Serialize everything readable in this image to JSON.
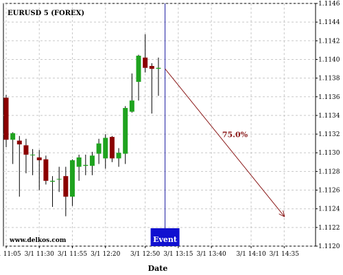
{
  "chart_data": {
    "type": "candlestick",
    "title": "EURUSD 5 (FOREX)",
    "xlabel": "Date",
    "ylabel": "",
    "watermark": "www.delkos.com",
    "ylim": [
      1.112,
      1.1146
    ],
    "y_ticks": [
      "1.1146",
      "1.1144",
      "1.1142",
      "1.1140",
      "1.1138",
      "1.1136",
      "1.1134",
      "1.1132",
      "1.1130",
      "1.1128",
      "1.1126",
      "1.1124",
      "1.1122",
      "1.1120"
    ],
    "x_tick_labels": [
      "3/1 11:05",
      "3/1 11:30",
      "3/1 11:55",
      "3/1 12:20",
      "3/1 12:50",
      "3/1 13:15",
      "3/1 13:40",
      "3/1 14:10",
      "3/1 14:35"
    ],
    "x_tick_index": [
      0,
      5,
      10,
      15,
      21,
      26,
      31,
      37,
      42
    ],
    "grid": true,
    "colors": {
      "up": "#1fa31f",
      "down": "#8b0000",
      "wick": "#000000",
      "event_line": "#1a1aa0",
      "event_box": "#1010d0",
      "arrow": "#8b1a1a",
      "grid": "#c8c8c8"
    },
    "candles": [
      {
        "o": 1.11359,
        "h": 1.11362,
        "l": 1.11306,
        "c": 1.11314
      },
      {
        "o": 1.11314,
        "h": 1.11322,
        "l": 1.11288,
        "c": 1.11321
      },
      {
        "o": 1.11313,
        "h": 1.11318,
        "l": 1.11253,
        "c": 1.11309
      },
      {
        "o": 1.11308,
        "h": 1.11315,
        "l": 1.11278,
        "c": 1.11298
      },
      {
        "o": 1.11298,
        "h": 1.11304,
        "l": 1.11276,
        "c": 1.11298
      },
      {
        "o": 1.11295,
        "h": 1.11303,
        "l": 1.1126,
        "c": 1.11292
      },
      {
        "o": 1.11293,
        "h": 1.11297,
        "l": 1.11266,
        "c": 1.1127
      },
      {
        "o": 1.11269,
        "h": 1.11275,
        "l": 1.11242,
        "c": 1.1127
      },
      {
        "o": 1.11272,
        "h": 1.11285,
        "l": 1.11258,
        "c": 1.11272
      },
      {
        "o": 1.11275,
        "h": 1.11285,
        "l": 1.11232,
        "c": 1.11253
      },
      {
        "o": 1.11253,
        "h": 1.11293,
        "l": 1.11243,
        "c": 1.11292
      },
      {
        "o": 1.11285,
        "h": 1.11298,
        "l": 1.1127,
        "c": 1.11295
      },
      {
        "o": 1.11286,
        "h": 1.11298,
        "l": 1.11276,
        "c": 1.11287
      },
      {
        "o": 1.11286,
        "h": 1.11301,
        "l": 1.11276,
        "c": 1.11297
      },
      {
        "o": 1.11299,
        "h": 1.11315,
        "l": 1.11288,
        "c": 1.1131
      },
      {
        "o": 1.11294,
        "h": 1.1132,
        "l": 1.11283,
        "c": 1.11316
      },
      {
        "o": 1.11317,
        "h": 1.11318,
        "l": 1.1129,
        "c": 1.11294
      },
      {
        "o": 1.11294,
        "h": 1.11305,
        "l": 1.11285,
        "c": 1.113
      },
      {
        "o": 1.11299,
        "h": 1.1135,
        "l": 1.11288,
        "c": 1.11348
      },
      {
        "o": 1.11344,
        "h": 1.11385,
        "l": 1.11343,
        "c": 1.11356
      },
      {
        "o": 1.11376,
        "h": 1.11405,
        "l": 1.11356,
        "c": 1.11404
      },
      {
        "o": 1.11402,
        "h": 1.11427,
        "l": 1.11386,
        "c": 1.11391
      },
      {
        "o": 1.11393,
        "h": 1.11396,
        "l": 1.11342,
        "c": 1.1139
      },
      {
        "o": 1.1139,
        "h": 1.11402,
        "l": 1.11361,
        "c": 1.11391
      }
    ],
    "event": {
      "index": 24,
      "label": "Event"
    },
    "forecast": {
      "label": "75.0%",
      "start_index": 24,
      "start_value": 1.1139,
      "end_index": 42,
      "end_value": 1.11232
    }
  }
}
